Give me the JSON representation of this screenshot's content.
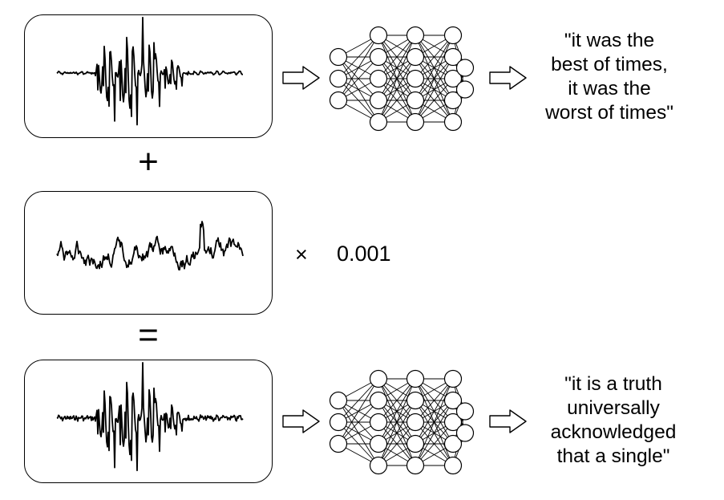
{
  "diagram": {
    "row1": {
      "output_lines": [
        "\"it was the",
        "best of times,",
        "it was the",
        "worst of times\""
      ]
    },
    "plus_symbol": "+",
    "row2": {
      "times_symbol": "×",
      "scale_factor": "0.001"
    },
    "equals_symbol": "=",
    "row3": {
      "output_lines": [
        "\"it is a truth",
        "universally",
        "acknowledged",
        "that a single\""
      ]
    }
  }
}
